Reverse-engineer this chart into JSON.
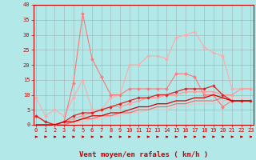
{
  "xlabel": "Vent moyen/en rafales ( km/h )",
  "xlabel_color": "#cc0000",
  "background_color": "#b2e8e8",
  "grid_color": "#999999",
  "x": [
    0,
    1,
    2,
    3,
    4,
    5,
    6,
    7,
    8,
    9,
    10,
    11,
    12,
    13,
    14,
    15,
    16,
    17,
    18,
    19,
    20,
    21,
    22,
    23
  ],
  "lines": [
    {
      "y": [
        9,
        3,
        5,
        3,
        9,
        15,
        5,
        5,
        9,
        10,
        20,
        20,
        23,
        23,
        22,
        29,
        30,
        31,
        26,
        24,
        23,
        12,
        12,
        12
      ],
      "color": "#ffaaaa",
      "lw": 0.8,
      "marker": "D",
      "ms": 2.0,
      "zorder": 2
    },
    {
      "y": [
        3,
        1,
        0,
        1,
        14,
        37,
        22,
        16,
        10,
        10,
        12,
        12,
        12,
        12,
        12,
        17,
        17,
        16,
        10,
        10,
        6,
        8,
        8,
        8
      ],
      "color": "#ff7777",
      "lw": 0.8,
      "marker": "D",
      "ms": 2.0,
      "zorder": 3
    },
    {
      "y": [
        3,
        1,
        0,
        1,
        2,
        3,
        4,
        5,
        6,
        6,
        7,
        8,
        9,
        9,
        10,
        10,
        11,
        11,
        11,
        11,
        10,
        10,
        12,
        12
      ],
      "color": "#ff9999",
      "lw": 0.9,
      "marker": "D",
      "ms": 1.8,
      "zorder": 3
    },
    {
      "y": [
        3,
        1,
        0,
        1,
        3,
        4,
        4,
        5,
        6,
        7,
        8,
        9,
        9,
        10,
        10,
        11,
        12,
        12,
        12,
        13,
        10,
        8,
        8,
        8
      ],
      "color": "#dd2222",
      "lw": 0.9,
      "marker": "D",
      "ms": 1.8,
      "zorder": 4
    },
    {
      "y": [
        0,
        0,
        0,
        0,
        0,
        1,
        2,
        3,
        3,
        4,
        5,
        5,
        6,
        6,
        7,
        7,
        7,
        8,
        8,
        8,
        9,
        9,
        9,
        9
      ],
      "color": "#ffcccc",
      "lw": 0.8,
      "marker": null,
      "ms": 0,
      "zorder": 2
    },
    {
      "y": [
        0,
        0,
        0,
        0,
        1,
        1,
        2,
        2,
        3,
        3,
        4,
        4,
        5,
        5,
        5,
        6,
        6,
        7,
        7,
        7,
        8,
        8,
        8,
        8
      ],
      "color": "#ffbbbb",
      "lw": 0.8,
      "marker": null,
      "ms": 0,
      "zorder": 2
    },
    {
      "y": [
        0,
        0,
        0,
        0,
        1,
        2,
        2,
        3,
        3,
        4,
        4,
        5,
        5,
        6,
        6,
        7,
        7,
        8,
        8,
        8,
        9,
        8,
        8,
        8
      ],
      "color": "#ee6666",
      "lw": 0.8,
      "marker": null,
      "ms": 0,
      "zorder": 3
    },
    {
      "y": [
        0,
        0,
        0,
        1,
        1,
        2,
        3,
        3,
        4,
        4,
        5,
        6,
        6,
        7,
        7,
        8,
        8,
        9,
        9,
        10,
        9,
        8,
        8,
        8
      ],
      "color": "#cc0000",
      "lw": 0.9,
      "marker": null,
      "ms": 0,
      "zorder": 4
    }
  ],
  "ylim": [
    0,
    40
  ],
  "yticks": [
    0,
    5,
    10,
    15,
    20,
    25,
    30,
    35,
    40
  ],
  "xticks": [
    0,
    1,
    2,
    3,
    4,
    5,
    6,
    7,
    8,
    9,
    10,
    11,
    12,
    13,
    14,
    15,
    16,
    17,
    18,
    19,
    20,
    21,
    22,
    23
  ],
  "tick_fontsize": 5.0,
  "xlabel_fontsize": 6.5,
  "tick_color": "#cc0000",
  "axis_color": "#cc0000",
  "arrow_color": "#cc0000"
}
